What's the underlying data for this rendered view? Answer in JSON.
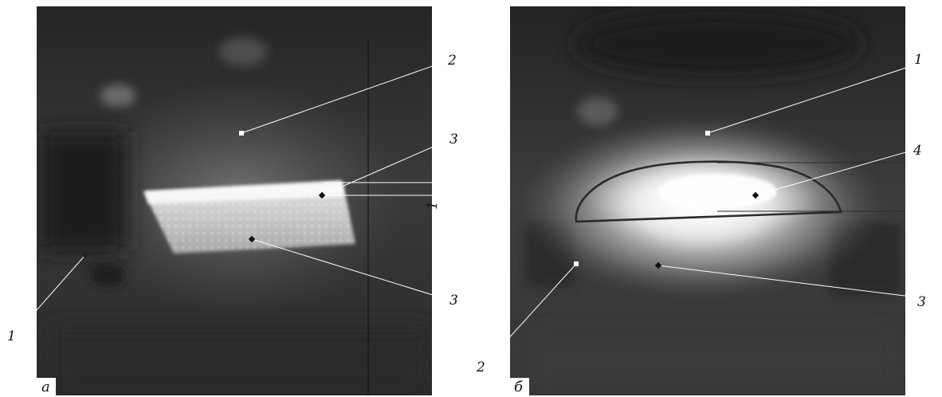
{
  "panels": [
    {
      "id": "a",
      "panel_label": "а",
      "callouts": [
        {
          "key": "label-2",
          "text": "2"
        },
        {
          "key": "label-3-upper",
          "text": "3"
        },
        {
          "key": "label-3-lower",
          "text": "3"
        },
        {
          "key": "label-1",
          "text": "1"
        }
      ],
      "dimension_text": "1"
    },
    {
      "id": "b",
      "panel_label": "б",
      "callouts": [
        {
          "key": "label-1",
          "text": "1"
        },
        {
          "key": "label-4",
          "text": "4"
        },
        {
          "key": "label-3",
          "text": "3"
        },
        {
          "key": "label-2",
          "text": "2"
        }
      ]
    }
  ],
  "colors": {
    "background": "#ffffff",
    "image_dark": "#2b2b2b",
    "glow_bright": "#ffffff",
    "leader_line": "#ffffff",
    "marker_dark": "#111111"
  }
}
